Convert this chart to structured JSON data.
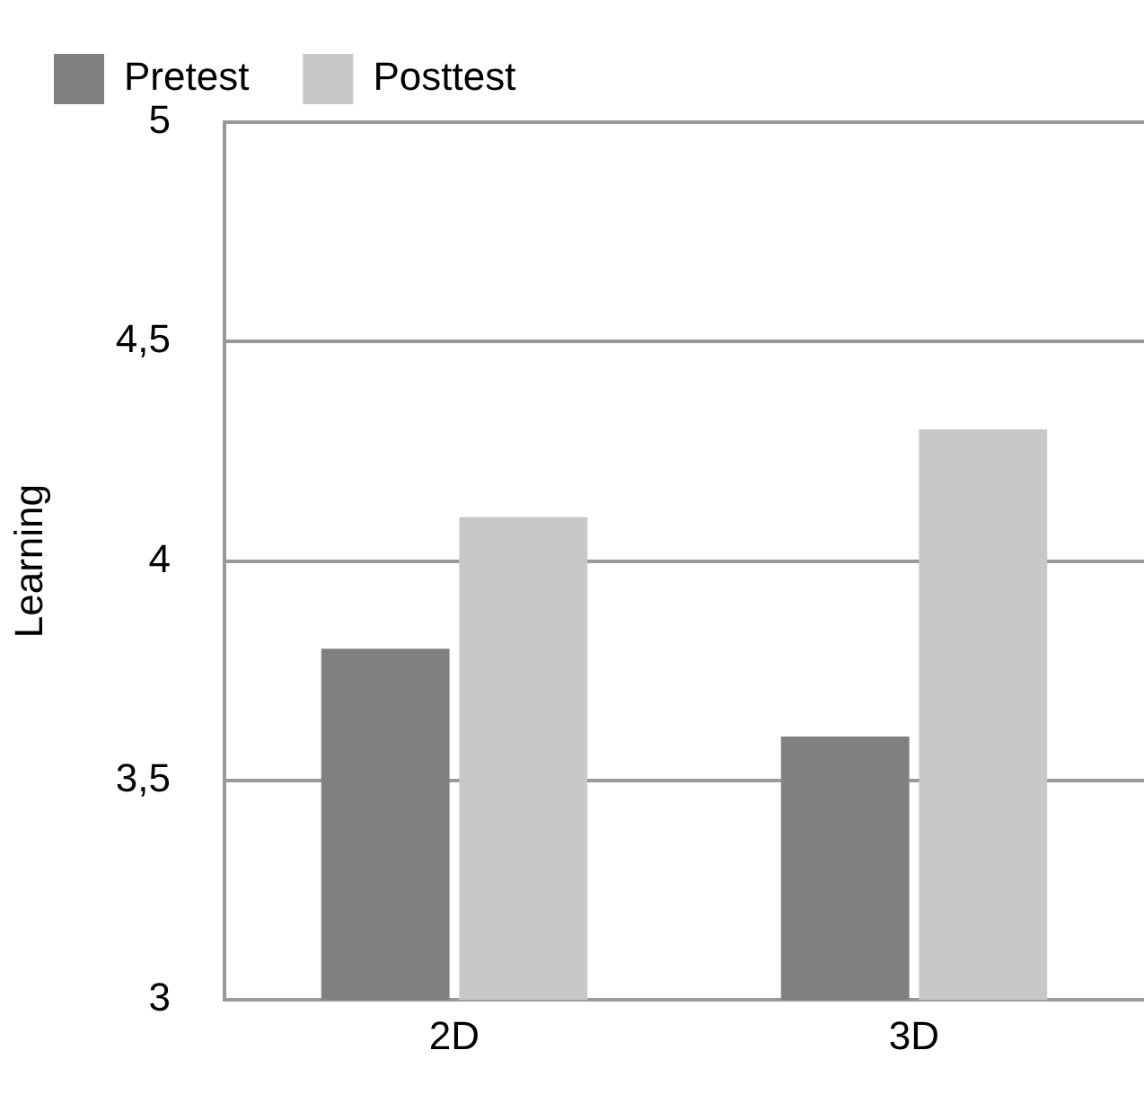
{
  "chart_data": {
    "type": "bar",
    "ylabel": "Learning",
    "categories": [
      "2D",
      "3D"
    ],
    "series": [
      {
        "name": "Pretest",
        "color": "#808080",
        "values": [
          3.8,
          3.6
        ]
      },
      {
        "name": "Posttest",
        "color": "#c8c8c8",
        "values": [
          4.1,
          4.3
        ]
      }
    ],
    "ylim": [
      3,
      5
    ],
    "yticks": [
      3,
      {
        "value": 3.5,
        "label": "3,5"
      },
      4,
      {
        "value": 4.5,
        "label": "4,5"
      },
      5
    ],
    "grid": "y",
    "legend": "top left"
  }
}
